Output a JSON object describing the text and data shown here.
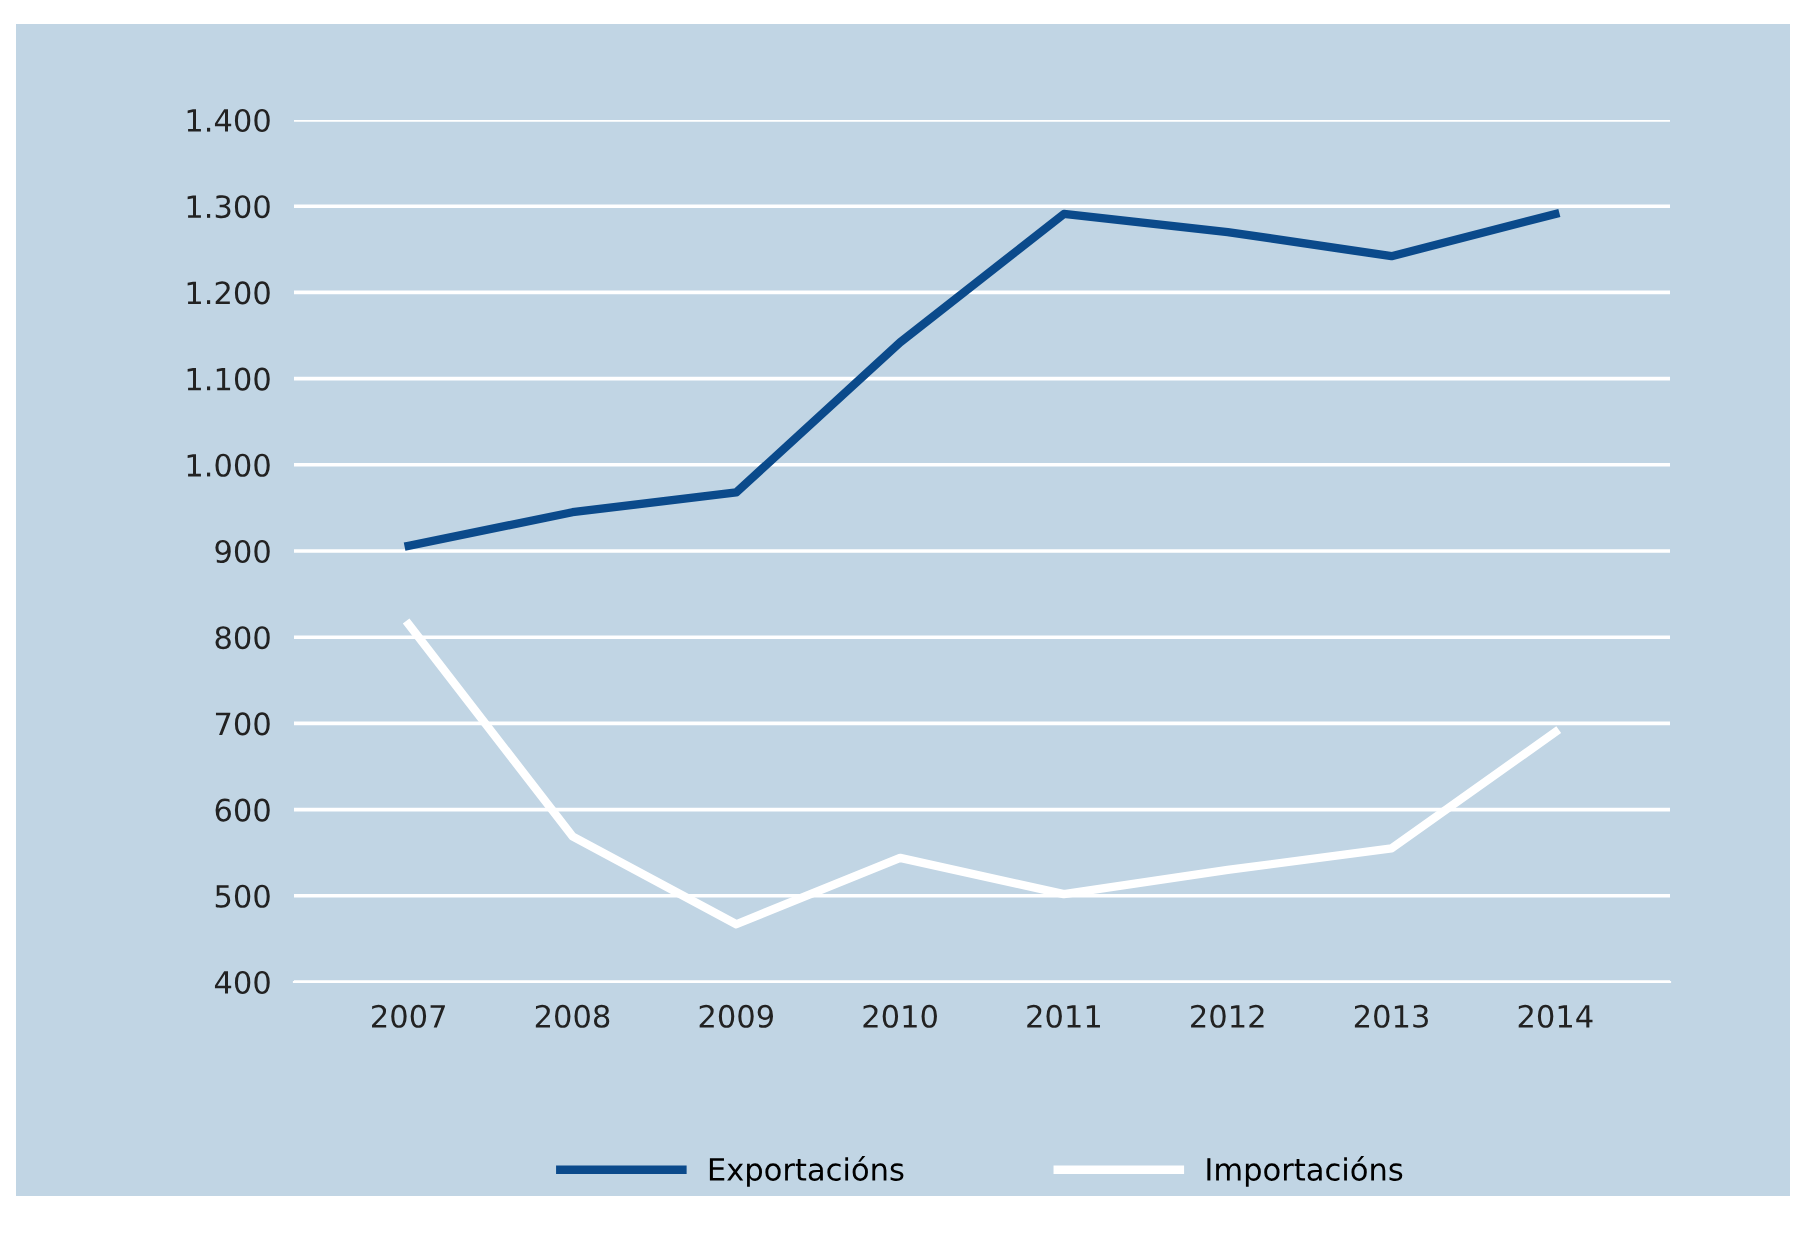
{
  "chart_data": {
    "type": "line",
    "categories": [
      "2007",
      "2008",
      "2009",
      "2010",
      "2011",
      "2012",
      "2013",
      "2014"
    ],
    "series": [
      {
        "name": "Exportacións",
        "color": "#0b4a8b",
        "values": [
          906,
          945,
          968,
          1142,
          1291,
          1270,
          1242,
          1291
        ]
      },
      {
        "name": "Importacións",
        "color": "#ffffff",
        "values": [
          815,
          569,
          467,
          544,
          502,
          530,
          555,
          690
        ]
      }
    ],
    "ylim": [
      400,
      1400
    ],
    "yticks": [
      {
        "value": 400,
        "label": "400"
      },
      {
        "value": 500,
        "label": "500"
      },
      {
        "value": 600,
        "label": "600"
      },
      {
        "value": 700,
        "label": "700"
      },
      {
        "value": 800,
        "label": "800"
      },
      {
        "value": 900,
        "label": "900"
      },
      {
        "value": 1000,
        "label": "1.000"
      },
      {
        "value": 1100,
        "label": "1.100"
      },
      {
        "value": 1200,
        "label": "1.200"
      },
      {
        "value": 1300,
        "label": "1.300"
      },
      {
        "value": 1400,
        "label": "1.400"
      }
    ],
    "grid": "y",
    "legend": "bottom",
    "marker": "none",
    "line_style": "solid"
  }
}
